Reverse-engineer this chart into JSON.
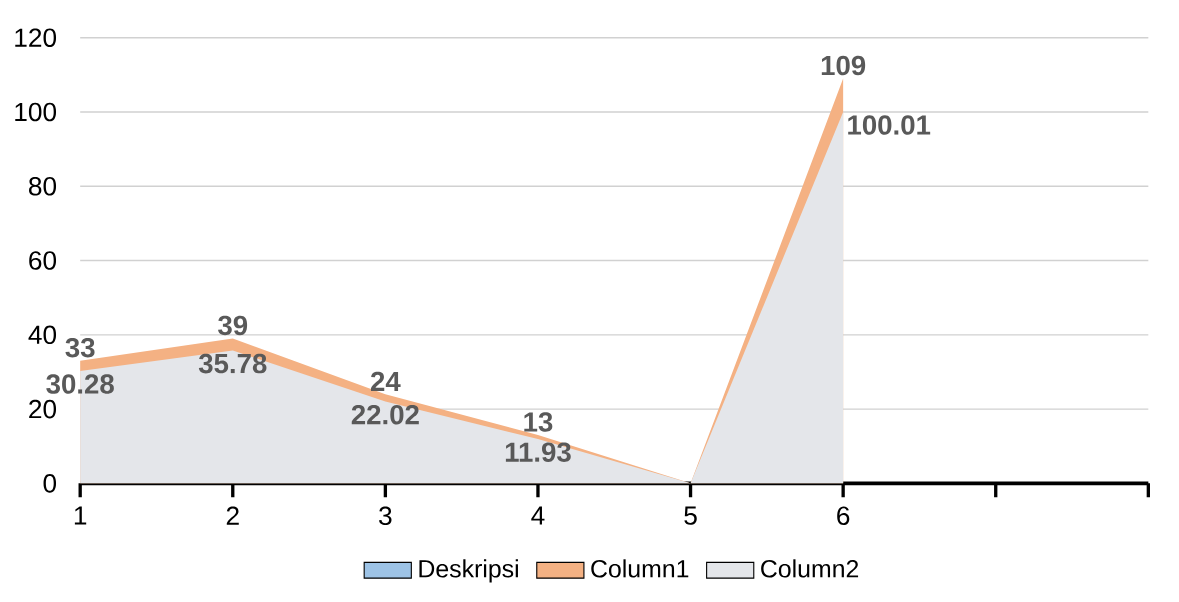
{
  "chart_data": {
    "type": "area",
    "categories": [
      "1",
      "2",
      "3",
      "4",
      "5",
      "6",
      null,
      null
    ],
    "series": [
      {
        "name": "Deskripsi",
        "color": "#9dc3e6",
        "values": [
          null,
          null,
          null,
          null,
          null,
          null,
          null,
          null
        ]
      },
      {
        "name": "Column1",
        "color": "#f4b183",
        "values": [
          33,
          39,
          24,
          13,
          0,
          109,
          null,
          null
        ],
        "value_labels": [
          "33",
          "39",
          "24",
          "13",
          null,
          "109",
          null,
          null
        ]
      },
      {
        "name": "Column2",
        "color": "#e4e6ea",
        "values": [
          30.28,
          35.78,
          22.02,
          11.93,
          0,
          100.01,
          null,
          null
        ],
        "value_labels": [
          "30.28",
          "35.78",
          "22.02",
          "11.93",
          null,
          "100.01",
          null,
          null
        ]
      }
    ],
    "ylim": [
      0,
      120
    ],
    "yticks": [
      0,
      20,
      40,
      60,
      80,
      100,
      120
    ],
    "grid": "y",
    "legend": "bottom"
  }
}
